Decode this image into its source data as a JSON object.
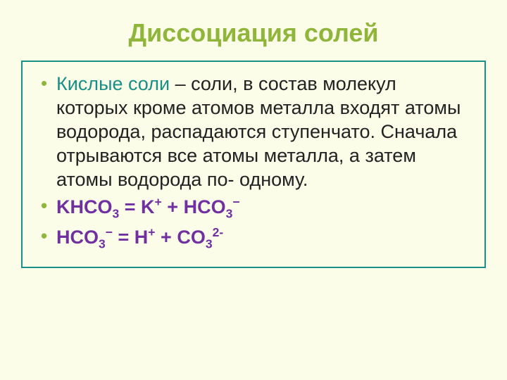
{
  "colors": {
    "background": "#fbfde9",
    "title": "#8fb63a",
    "bullet": "#8fb63a",
    "border": "#1a8f86",
    "term": "#1a8f86",
    "equation": "#7030a0",
    "body_text": "#222222"
  },
  "typography": {
    "title_fontsize": 36,
    "body_fontsize": 27,
    "line_height": 1.26,
    "title_weight": "bold",
    "equation_weight": "bold",
    "font_family": "Arial"
  },
  "title": "Диссоциация солей",
  "bullet1": {
    "term": "Кислые соли",
    "rest": " – соли, в состав молекул которых кроме атомов металла входят атомы водорода, распадаются ступенчато. Сначала отрываются все атомы металла, а затем атомы водорода по- одному."
  },
  "eq1": {
    "p1": "KHCO",
    "sub1": "3",
    "p2": " = K",
    "sup2": "+",
    "p3": " + HCO",
    "sub3": "3",
    "sup3": "−"
  },
  "eq2": {
    "p1": "HCO",
    "sub1": "3",
    "sup1": "−",
    "p2": " = H",
    "sup2": "+",
    "p3": " + CO",
    "sub3": "3",
    "sup3": "2-"
  }
}
